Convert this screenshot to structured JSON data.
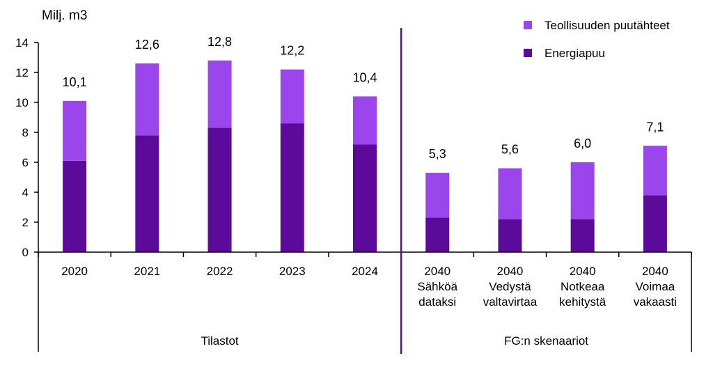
{
  "chart_data": {
    "type": "bar",
    "stacked": true,
    "ylabel": "Milj. m3",
    "ylim": [
      0,
      14
    ],
    "yticks": [
      0,
      2,
      4,
      6,
      8,
      10,
      12,
      14
    ],
    "grid": false,
    "legend_position": "top-right",
    "colors": {
      "energiapuu": "#5c0a99",
      "teollisuus": "#9b45ec"
    },
    "categories": [
      [
        "2020"
      ],
      [
        "2021"
      ],
      [
        "2022"
      ],
      [
        "2023"
      ],
      [
        "2024"
      ],
      [
        "2040",
        "Sähköä",
        "dataksi"
      ],
      [
        "2040",
        "Vedystä",
        "valtavirtaa"
      ],
      [
        "2040",
        "Notkeaa",
        "kehitystä"
      ],
      [
        "2040",
        "Voimaa",
        "vakaasti"
      ]
    ],
    "series": [
      {
        "name": "Energiapuu",
        "values": [
          6.1,
          7.8,
          8.3,
          8.6,
          7.2,
          2.3,
          2.2,
          2.2,
          3.8
        ]
      },
      {
        "name": "Teollisuuden puutähteet",
        "values": [
          4.0,
          4.8,
          4.5,
          3.6,
          3.2,
          3.0,
          3.4,
          3.8,
          3.3
        ]
      }
    ],
    "totals_labels": [
      "10,1",
      "12,6",
      "12,8",
      "12,2",
      "10,4",
      "5,3",
      "5,6",
      "6,0",
      "7,1"
    ],
    "groups": [
      {
        "label": "Tilastot",
        "count": 5
      },
      {
        "label": "FG:n skenaariot",
        "count": 4
      }
    ]
  }
}
